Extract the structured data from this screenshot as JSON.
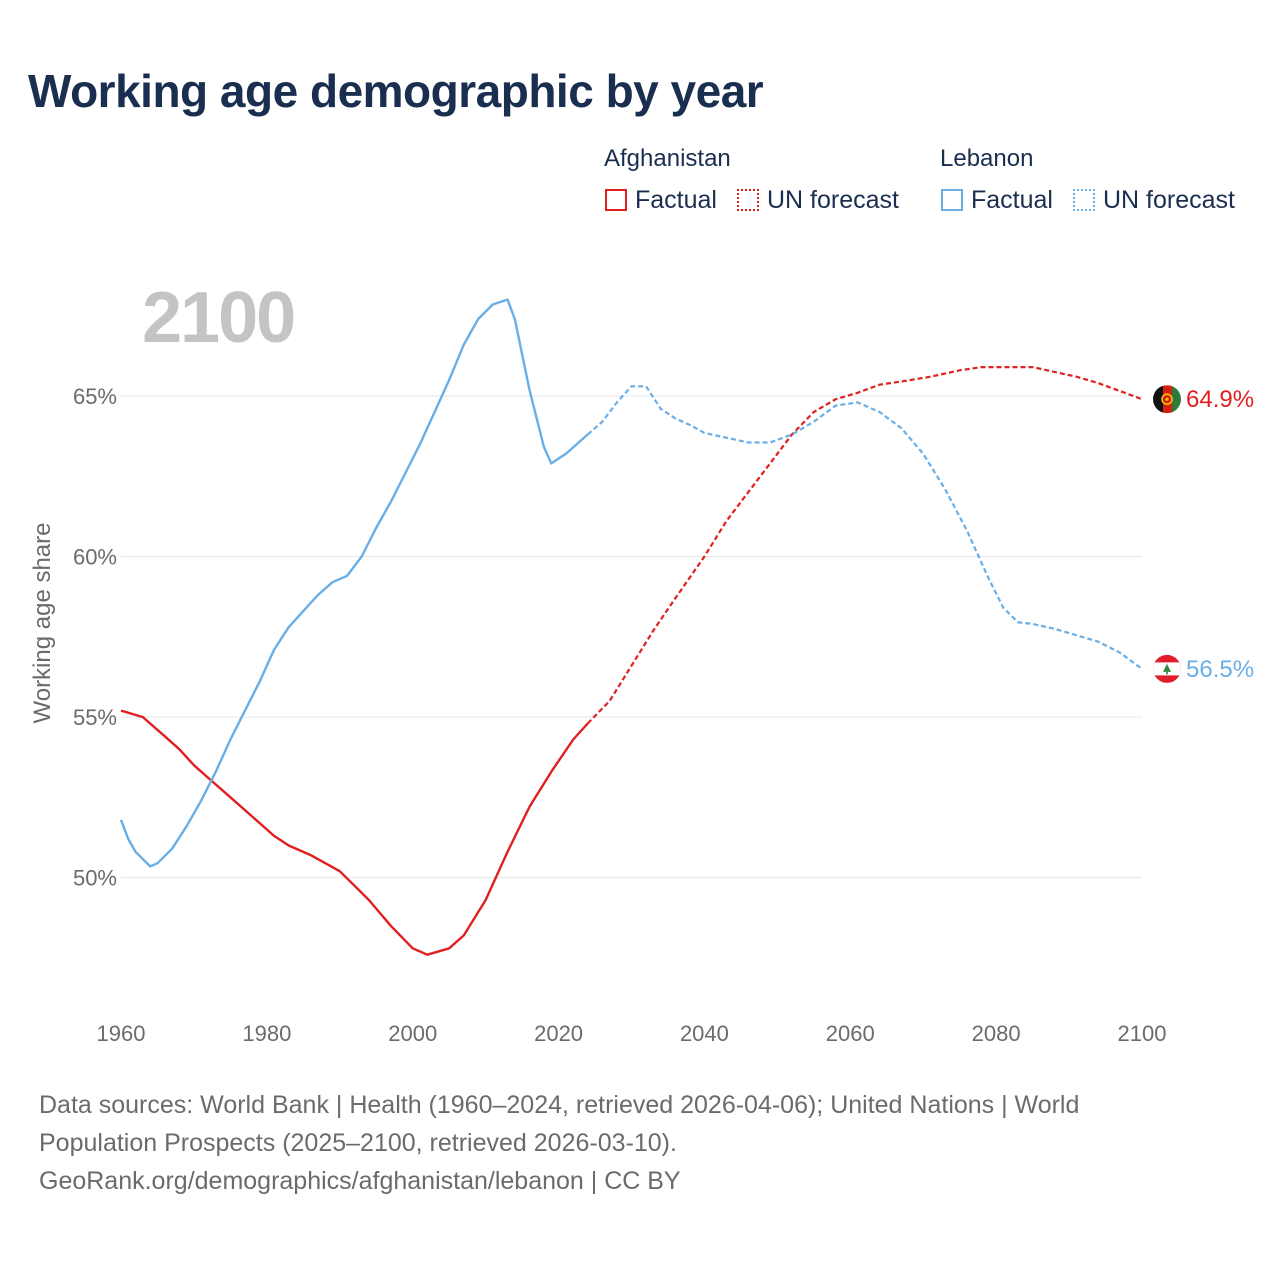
{
  "title": "Working age demographic by year",
  "legend": {
    "afghanistan": {
      "name": "Afghanistan",
      "factual": "Factual",
      "forecast": "UN forecast",
      "color": "#e02020"
    },
    "lebanon": {
      "name": "Lebanon",
      "factual": "Factual",
      "forecast": "UN forecast",
      "color": "#6aaee6"
    }
  },
  "year_watermark": "2100",
  "source": {
    "line1": "Data sources: World Bank | Health (1960–2024, retrieved 2026-04-06); United Nations | World",
    "line2": "Population Prospects (2025–2100, retrieved 2026-03-10).",
    "line3": "GeoRank.org/demographics/afghanistan/lebanon | CC BY"
  },
  "chart_data": {
    "type": "line",
    "ylabel": "Working age share",
    "xlabel": "",
    "xlim": [
      1960,
      2100
    ],
    "ylim": [
      46.5,
      68.3
    ],
    "x_ticks": [
      1960,
      1980,
      2000,
      2020,
      2040,
      2060,
      2080,
      2100
    ],
    "y_ticks": [
      50,
      55,
      60,
      65
    ],
    "y_tick_labels": [
      "50%",
      "55%",
      "60%",
      "65%"
    ],
    "forecast_start": 2024,
    "series": [
      {
        "name": "Afghanistan",
        "color": "#e02020",
        "end_label": "64.9%",
        "points": [
          [
            1960,
            55.2
          ],
          [
            1963,
            55.0
          ],
          [
            1966,
            54.4
          ],
          [
            1968,
            54.0
          ],
          [
            1970,
            53.5
          ],
          [
            1972,
            53.1
          ],
          [
            1975,
            52.5
          ],
          [
            1978,
            51.9
          ],
          [
            1981,
            51.3
          ],
          [
            1983,
            51.0
          ],
          [
            1986,
            50.7
          ],
          [
            1990,
            50.2
          ],
          [
            1994,
            49.3
          ],
          [
            1997,
            48.5
          ],
          [
            2000,
            47.8
          ],
          [
            2002,
            47.6
          ],
          [
            2005,
            47.8
          ],
          [
            2007,
            48.2
          ],
          [
            2010,
            49.3
          ],
          [
            2013,
            50.8
          ],
          [
            2016,
            52.2
          ],
          [
            2019,
            53.3
          ],
          [
            2022,
            54.3
          ],
          [
            2024,
            54.8
          ],
          [
            2027,
            55.5
          ],
          [
            2030,
            56.6
          ],
          [
            2033,
            57.7
          ],
          [
            2036,
            58.7
          ],
          [
            2040,
            60.0
          ],
          [
            2043,
            61.1
          ],
          [
            2046,
            62.0
          ],
          [
            2049,
            62.9
          ],
          [
            2052,
            63.8
          ],
          [
            2055,
            64.5
          ],
          [
            2058,
            64.9
          ],
          [
            2061,
            65.1
          ],
          [
            2064,
            65.35
          ],
          [
            2067,
            65.45
          ],
          [
            2071,
            65.6
          ],
          [
            2075,
            65.8
          ],
          [
            2078,
            65.9
          ],
          [
            2082,
            65.9
          ],
          [
            2085,
            65.9
          ],
          [
            2088,
            65.75
          ],
          [
            2091,
            65.6
          ],
          [
            2094,
            65.4
          ],
          [
            2097,
            65.15
          ],
          [
            2100,
            64.9
          ]
        ]
      },
      {
        "name": "Lebanon",
        "color": "#6aaee6",
        "end_label": "56.5%",
        "points": [
          [
            1960,
            51.8
          ],
          [
            1961,
            51.2
          ],
          [
            1962,
            50.8
          ],
          [
            1964,
            50.35
          ],
          [
            1965,
            50.45
          ],
          [
            1967,
            50.9
          ],
          [
            1969,
            51.6
          ],
          [
            1971,
            52.4
          ],
          [
            1973,
            53.3
          ],
          [
            1975,
            54.3
          ],
          [
            1977,
            55.2
          ],
          [
            1979,
            56.1
          ],
          [
            1981,
            57.1
          ],
          [
            1983,
            57.8
          ],
          [
            1985,
            58.3
          ],
          [
            1987,
            58.8
          ],
          [
            1989,
            59.2
          ],
          [
            1991,
            59.4
          ],
          [
            1993,
            60.0
          ],
          [
            1995,
            60.9
          ],
          [
            1997,
            61.7
          ],
          [
            1999,
            62.6
          ],
          [
            2001,
            63.5
          ],
          [
            2003,
            64.5
          ],
          [
            2005,
            65.5
          ],
          [
            2007,
            66.6
          ],
          [
            2009,
            67.4
          ],
          [
            2011,
            67.85
          ],
          [
            2013,
            68.0
          ],
          [
            2014,
            67.4
          ],
          [
            2016,
            65.2
          ],
          [
            2018,
            63.4
          ],
          [
            2019,
            62.9
          ],
          [
            2021,
            63.2
          ],
          [
            2023,
            63.6
          ],
          [
            2024,
            63.8
          ],
          [
            2026,
            64.2
          ],
          [
            2028,
            64.8
          ],
          [
            2030,
            65.3
          ],
          [
            2032,
            65.3
          ],
          [
            2034,
            64.6
          ],
          [
            2036,
            64.3
          ],
          [
            2038,
            64.1
          ],
          [
            2040,
            63.85
          ],
          [
            2043,
            63.7
          ],
          [
            2046,
            63.55
          ],
          [
            2049,
            63.55
          ],
          [
            2052,
            63.8
          ],
          [
            2055,
            64.2
          ],
          [
            2058,
            64.7
          ],
          [
            2061,
            64.8
          ],
          [
            2064,
            64.5
          ],
          [
            2067,
            64.0
          ],
          [
            2070,
            63.2
          ],
          [
            2073,
            62.1
          ],
          [
            2076,
            60.8
          ],
          [
            2079,
            59.3
          ],
          [
            2081,
            58.4
          ],
          [
            2083,
            57.95
          ],
          [
            2085,
            57.9
          ],
          [
            2088,
            57.75
          ],
          [
            2091,
            57.55
          ],
          [
            2094,
            57.35
          ],
          [
            2097,
            57.0
          ],
          [
            2100,
            56.5
          ]
        ]
      }
    ]
  }
}
